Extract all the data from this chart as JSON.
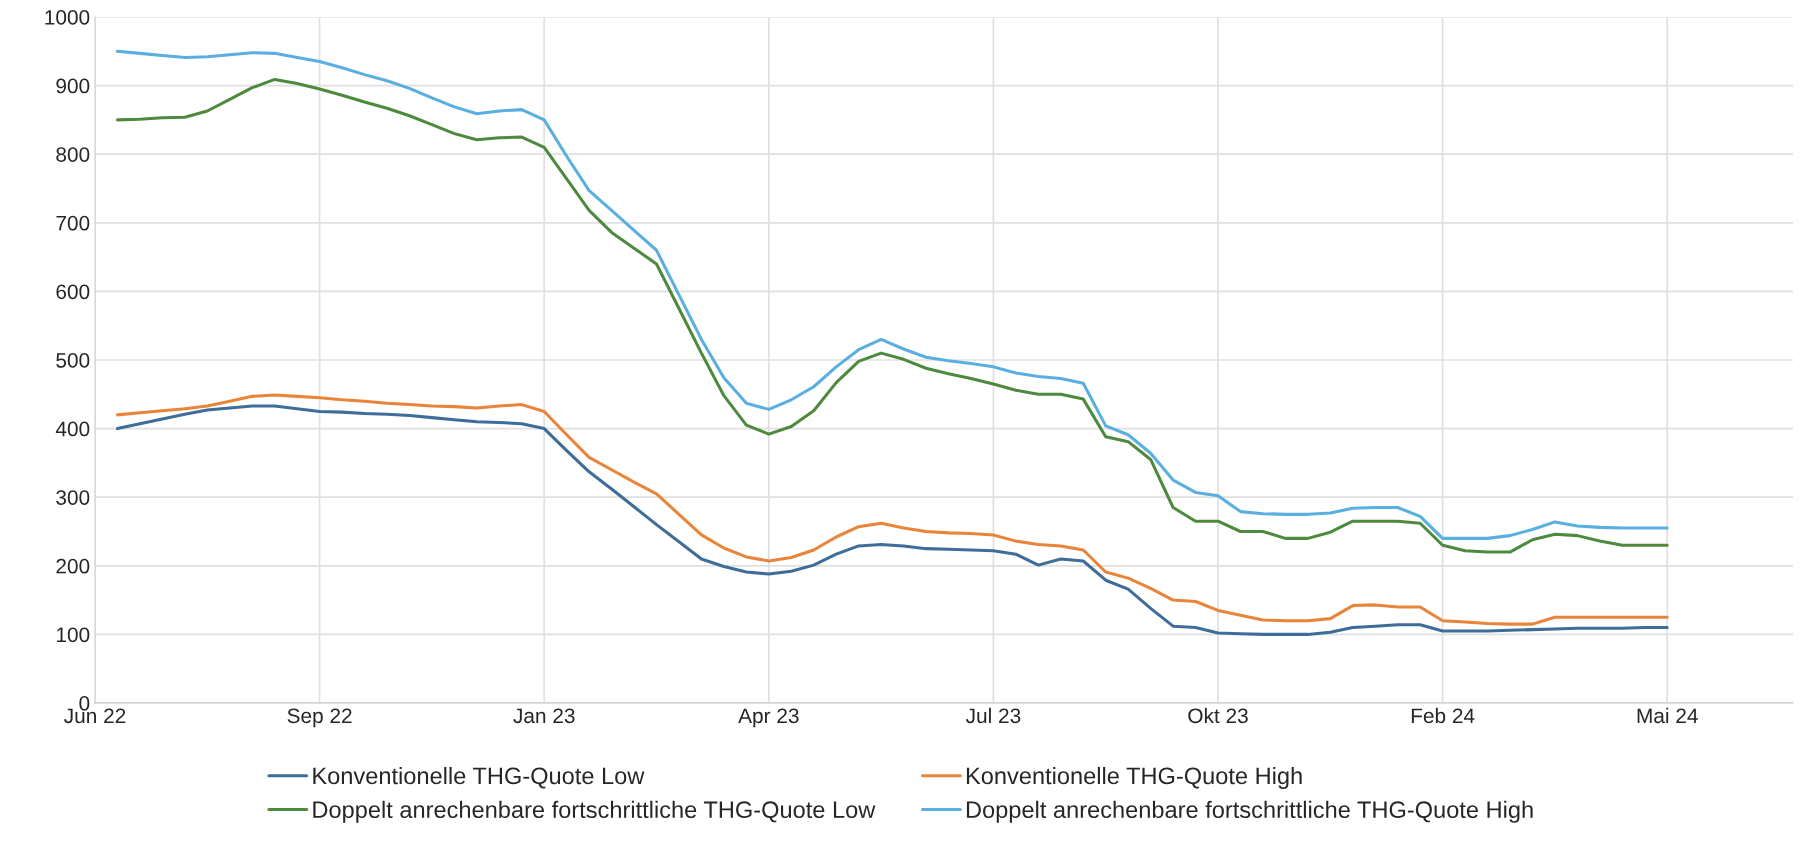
{
  "chart_data": {
    "type": "line",
    "categories": [
      "Jun 22",
      null,
      null,
      null,
      null,
      null,
      null,
      null,
      null,
      null,
      "Sep 22",
      null,
      null,
      null,
      null,
      null,
      null,
      null,
      null,
      null,
      "Jan 23",
      null,
      null,
      null,
      null,
      null,
      null,
      null,
      null,
      null,
      "Apr 23",
      null,
      null,
      null,
      null,
      null,
      null,
      null,
      null,
      null,
      "Jul 23",
      null,
      null,
      null,
      null,
      null,
      null,
      null,
      null,
      null,
      "Okt 23",
      null,
      null,
      null,
      null,
      null,
      null,
      null,
      null,
      null,
      "Feb 24",
      null,
      null,
      null,
      null,
      null,
      null,
      null,
      null,
      null,
      "Mai 24",
      null,
      null,
      null,
      null,
      null
    ],
    "ylim": [
      0,
      1000
    ],
    "yticks": [
      0,
      100,
      200,
      300,
      400,
      500,
      600,
      700,
      800,
      900,
      1000
    ],
    "grid": true,
    "legend": "bottom",
    "marker": "none",
    "line_style": "solid",
    "series": [
      {
        "name": "Konventionelle THG-Quote Low",
        "color": "#3f6d99",
        "values": [
          null,
          400,
          407,
          414,
          421,
          427,
          430,
          433,
          433,
          429,
          425,
          424,
          422,
          421,
          419,
          416,
          413,
          410,
          409,
          407,
          400,
          368,
          337,
          312,
          286,
          260,
          235,
          210,
          199,
          191,
          188,
          192,
          201,
          217,
          229,
          231,
          229,
          225,
          224,
          223,
          222,
          217,
          201,
          210,
          207,
          179,
          166,
          138,
          112,
          110,
          102,
          101,
          100,
          100,
          100,
          103,
          110,
          112,
          114,
          114,
          105,
          105,
          105,
          106,
          107,
          108,
          109,
          109,
          109,
          110,
          110,
          null,
          null,
          null,
          null,
          null
        ]
      },
      {
        "name": "Konventionelle THG-Quote High",
        "color": "#e8853a",
        "values": [
          null,
          420,
          423,
          426,
          429,
          433,
          440,
          447,
          449,
          447,
          445,
          442,
          440,
          437,
          435,
          433,
          432,
          430,
          433,
          435,
          425,
          391,
          358,
          340,
          322,
          305,
          275,
          245,
          226,
          213,
          207,
          212,
          223,
          242,
          257,
          262,
          255,
          250,
          248,
          247,
          245,
          236,
          231,
          229,
          223,
          191,
          182,
          167,
          150,
          148,
          135,
          128,
          121,
          120,
          120,
          123,
          142,
          143,
          140,
          140,
          120,
          118,
          116,
          115,
          115,
          125,
          125,
          125,
          125,
          125,
          125,
          null,
          null,
          null,
          null,
          null
        ]
      },
      {
        "name": "Doppelt anrechenbare fortschrittliche THG-Quote Low",
        "color": "#4e8a3e",
        "values": [
          null,
          850,
          851,
          853,
          854,
          863,
          880,
          897,
          909,
          903,
          895,
          886,
          876,
          867,
          856,
          843,
          830,
          821,
          824,
          825,
          810,
          764,
          718,
          686,
          663,
          640,
          575,
          510,
          448,
          405,
          392,
          403,
          426,
          467,
          498,
          510,
          501,
          488,
          480,
          473,
          465,
          456,
          450,
          450,
          443,
          388,
          381,
          355,
          285,
          265,
          265,
          250,
          250,
          240,
          240,
          249,
          265,
          265,
          265,
          262,
          230,
          222,
          220,
          220,
          238,
          246,
          244,
          236,
          230,
          230,
          230,
          null,
          null,
          null,
          null,
          null
        ]
      },
      {
        "name": "Doppelt anrechenbare fortschrittliche THG-Quote High",
        "color": "#5aafe0",
        "values": [
          null,
          950,
          947,
          944,
          941,
          942,
          945,
          948,
          947,
          941,
          935,
          926,
          916,
          907,
          896,
          882,
          869,
          859,
          863,
          865,
          850,
          797,
          747,
          718,
          689,
          660,
          595,
          530,
          474,
          437,
          428,
          442,
          461,
          490,
          515,
          530,
          516,
          504,
          499,
          495,
          490,
          481,
          476,
          473,
          466,
          404,
          391,
          364,
          325,
          307,
          302,
          279,
          276,
          275,
          275,
          277,
          284,
          285,
          285,
          272,
          240,
          240,
          240,
          244,
          253,
          264,
          258,
          256,
          255,
          255,
          255,
          null,
          null,
          null,
          null,
          null
        ]
      }
    ]
  }
}
